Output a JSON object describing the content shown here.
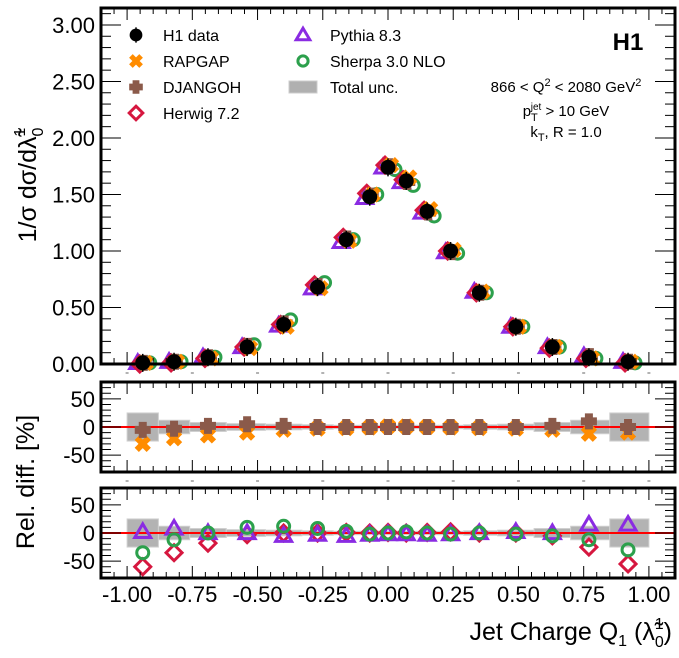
{
  "chart_data": {
    "type": "scatter",
    "title": "",
    "experiment_label": "H1",
    "annotations": [
      "866 < Q² < 2080 GeV²",
      "p_T^jet > 10 GeV",
      "k_T, R = 1.0"
    ],
    "xlabel": "Jet Charge Q₁ (λ̃₀¹)",
    "xlim": [
      -1.1,
      1.1
    ],
    "xticks": [
      "-1.00",
      "-0.75",
      "-0.50",
      "-0.25",
      "0.00",
      "0.25",
      "0.50",
      "0.75",
      "1.00"
    ],
    "xtick_values": [
      -1.0,
      -0.75,
      -0.5,
      -0.25,
      0.0,
      0.25,
      0.5,
      0.75,
      1.0
    ],
    "legend_location": "top-left",
    "legend": [
      {
        "name": "H1 data",
        "marker": "filled-circle",
        "color": "#000000"
      },
      {
        "name": "RAPGAP",
        "marker": "x-cross",
        "color": "#ff8c00"
      },
      {
        "name": "DJANGOH",
        "marker": "plus-cross",
        "color": "#8b5a4a"
      },
      {
        "name": "Herwig 7.2",
        "marker": "open-diamond",
        "color": "#d6173f"
      },
      {
        "name": "Pythia 8.3",
        "marker": "open-triangle",
        "color": "#8a2be2"
      },
      {
        "name": "Sherpa 3.0 NLO",
        "marker": "open-circle",
        "color": "#2ca04c"
      },
      {
        "name": "Total unc.",
        "marker": "gray-box",
        "color": "#b0b0b0"
      }
    ],
    "x": [
      -0.94,
      -0.82,
      -0.69,
      -0.54,
      -0.4,
      -0.27,
      -0.16,
      -0.07,
      0.0,
      0.07,
      0.15,
      0.24,
      0.35,
      0.49,
      0.63,
      0.77,
      0.92
    ],
    "bin_edges": [
      -1.0,
      -0.88,
      -0.76,
      -0.62,
      -0.47,
      -0.33,
      -0.21,
      -0.11,
      -0.035,
      0.035,
      0.11,
      0.195,
      0.29,
      0.42,
      0.56,
      0.7,
      0.85,
      1.0
    ],
    "panels": [
      {
        "name": "main",
        "ylabel": "1/σ dσ/dλ̃₀¹",
        "ylim": [
          0.0,
          3.15
        ],
        "yticks": [
          "0.00",
          "0.50",
          "1.00",
          "1.50",
          "2.00",
          "2.50",
          "3.00"
        ],
        "ytick_values": [
          0.0,
          0.5,
          1.0,
          1.5,
          2.0,
          2.5,
          3.0
        ],
        "series": [
          {
            "name": "H1 data",
            "values": [
              0.01,
              0.02,
              0.06,
              0.15,
              0.35,
              0.68,
              1.1,
              1.48,
              1.74,
              1.62,
              1.35,
              1.0,
              0.63,
              0.33,
              0.15,
              0.06,
              0.02
            ]
          },
          {
            "name": "RAPGAP",
            "values": [
              0.01,
              0.02,
              0.05,
              0.14,
              0.33,
              0.67,
              1.09,
              1.5,
              1.76,
              1.65,
              1.37,
              1.01,
              0.64,
              0.33,
              0.15,
              0.05,
              0.02
            ]
          },
          {
            "name": "DJANGOH",
            "values": [
              0.01,
              0.02,
              0.06,
              0.16,
              0.36,
              0.69,
              1.11,
              1.49,
              1.75,
              1.61,
              1.34,
              0.99,
              0.63,
              0.33,
              0.15,
              0.07,
              0.02
            ]
          },
          {
            "name": "Herwig 7.2",
            "values": [
              0.0,
              0.01,
              0.05,
              0.15,
              0.35,
              0.7,
              1.12,
              1.51,
              1.76,
              1.63,
              1.36,
              1.0,
              0.63,
              0.33,
              0.14,
              0.05,
              0.01
            ]
          },
          {
            "name": "Pythia 8.3",
            "values": [
              0.01,
              0.02,
              0.06,
              0.15,
              0.34,
              0.67,
              1.08,
              1.47,
              1.74,
              1.61,
              1.34,
              0.99,
              0.64,
              0.33,
              0.15,
              0.07,
              0.02
            ]
          },
          {
            "name": "Sherpa 3.0 NLO",
            "values": [
              0.01,
              0.02,
              0.06,
              0.17,
              0.39,
              0.72,
              1.1,
              1.5,
              1.72,
              1.58,
              1.31,
              0.98,
              0.63,
              0.33,
              0.15,
              0.05,
              0.01
            ]
          }
        ]
      },
      {
        "name": "ratio-1",
        "ylabel": "Rel. diff. [%]",
        "ylim": [
          -80,
          80
        ],
        "yticks": [
          "-50",
          "0",
          "50"
        ],
        "ytick_values": [
          -50,
          0,
          50
        ],
        "uncertainty": [
          25,
          12,
          8,
          6,
          5,
          4,
          3,
          3,
          3,
          3,
          3,
          3,
          4,
          5,
          8,
          12,
          25
        ],
        "series": [
          {
            "name": "RAPGAP",
            "values": [
              -30,
              -20,
              -15,
              -10,
              -5,
              -3,
              -2,
              -1,
              1,
              1,
              0,
              -1,
              -2,
              -3,
              -5,
              -12,
              -10
            ]
          },
          {
            "name": "DJANGOH",
            "values": [
              -5,
              -3,
              2,
              5,
              2,
              0,
              0,
              0,
              0,
              0,
              0,
              0,
              0,
              0,
              2,
              10,
              0
            ]
          }
        ]
      },
      {
        "name": "ratio-2",
        "ylabel": "Rel. diff. [%]",
        "ylim": [
          -80,
          80
        ],
        "yticks": [
          "-50",
          "0",
          "50"
        ],
        "ytick_values": [
          -50,
          0,
          50
        ],
        "uncertainty": [
          25,
          12,
          8,
          6,
          5,
          4,
          3,
          3,
          3,
          3,
          3,
          3,
          4,
          5,
          8,
          12,
          25
        ],
        "series": [
          {
            "name": "Herwig 7.2",
            "values": [
              -60,
              -35,
              -18,
              -3,
              0,
              0,
              1,
              0,
              1,
              0,
              1,
              2,
              0,
              0,
              -5,
              -25,
              -55
            ]
          },
          {
            "name": "Pythia 8.3",
            "values": [
              2,
              8,
              0,
              0,
              -5,
              -3,
              -5,
              -3,
              -2,
              -2,
              -3,
              -2,
              0,
              2,
              0,
              15,
              15
            ]
          },
          {
            "name": "Sherpa 3.0 NLO",
            "values": [
              -35,
              -12,
              0,
              10,
              12,
              8,
              3,
              -2,
              0,
              2,
              0,
              -2,
              0,
              -2,
              -5,
              -12,
              -30
            ]
          }
        ]
      }
    ]
  }
}
